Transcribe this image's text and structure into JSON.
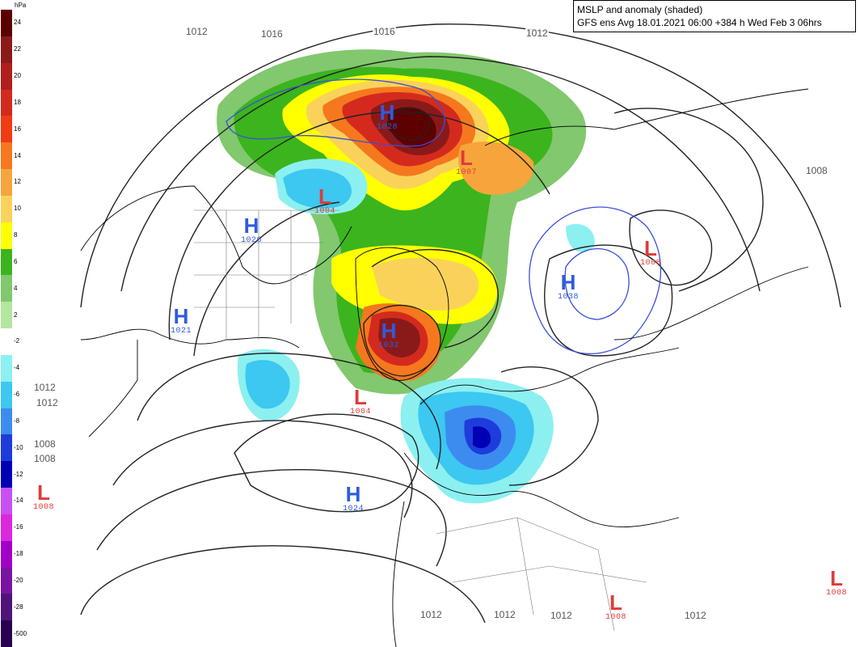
{
  "header": {
    "line1": "MSLP and anomaly (shaded)",
    "line2": "GFS ens Avg 18.01.2021 06:00 +384 h Wed Feb 3 06hrs"
  },
  "legend": {
    "unit": "hPa",
    "entries": [
      {
        "label": "24",
        "color": "#5c0000"
      },
      {
        "label": "22",
        "color": "#8a1a1a"
      },
      {
        "label": "20",
        "color": "#b01e1e"
      },
      {
        "label": "18",
        "color": "#d42a1e"
      },
      {
        "label": "16",
        "color": "#f03c14"
      },
      {
        "label": "14",
        "color": "#f5781e"
      },
      {
        "label": "12",
        "color": "#f5a53c"
      },
      {
        "label": "10",
        "color": "#fad25a"
      },
      {
        "label": "8",
        "color": "#ffff00"
      },
      {
        "label": "6",
        "color": "#3cb41e"
      },
      {
        "label": "4",
        "color": "#82c86e"
      },
      {
        "label": "2",
        "color": "#b4e6a0"
      },
      {
        "label": "-2",
        "color": "#ffffff"
      },
      {
        "label": "-4",
        "color": "#8cf0f0"
      },
      {
        "label": "-6",
        "color": "#3cc8f0"
      },
      {
        "label": "-8",
        "color": "#3c8cf0"
      },
      {
        "label": "-10",
        "color": "#1e3cdc"
      },
      {
        "label": "-12",
        "color": "#0000b4"
      },
      {
        "label": "-14",
        "color": "#c850f0"
      },
      {
        "label": "-16",
        "color": "#dc28dc"
      },
      {
        "label": "-18",
        "color": "#a000c8"
      },
      {
        "label": "-20",
        "color": "#7814a0"
      },
      {
        "label": "-28",
        "color": "#501478"
      },
      {
        "label": "-500",
        "color": "#280050"
      }
    ]
  },
  "pressure_centres": [
    {
      "type": "H",
      "value": "1028"
    },
    {
      "type": "L",
      "value": "1004"
    },
    {
      "type": "L",
      "value": "1007"
    },
    {
      "type": "H",
      "value": "1026"
    },
    {
      "type": "H",
      "value": "1021"
    },
    {
      "type": "H",
      "value": "1038"
    },
    {
      "type": "L",
      "value": "1008"
    },
    {
      "type": "H",
      "value": "1032"
    },
    {
      "type": "L",
      "value": "1004"
    },
    {
      "type": "H",
      "value": "1024"
    },
    {
      "type": "L",
      "value": "1008"
    },
    {
      "type": "L",
      "value": "1008"
    },
    {
      "type": "L",
      "value": "1008"
    }
  ],
  "isobar_labels": [
    "1012",
    "1016",
    "1016",
    "1012",
    "1008",
    "1012",
    "1012",
    "1008",
    "1008",
    "1012",
    "1012",
    "1012",
    "1012"
  ]
}
